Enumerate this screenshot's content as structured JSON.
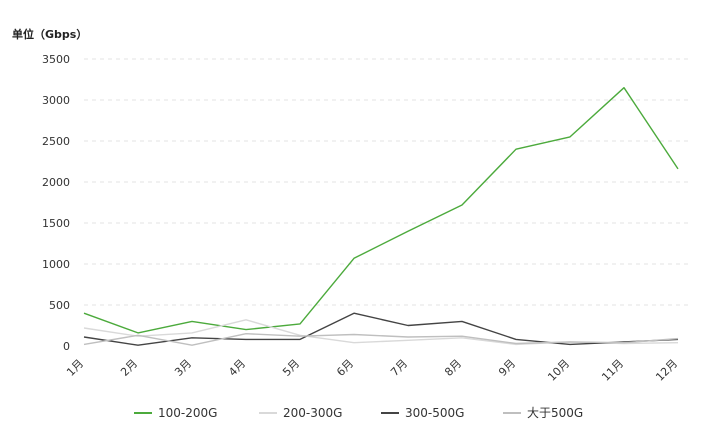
{
  "chart_data": {
    "type": "line",
    "ylabel": "单位（Gbps）",
    "categories": [
      "1月",
      "2月",
      "3月",
      "4月",
      "5月",
      "6月",
      "7月",
      "8月",
      "9月",
      "10月",
      "11月",
      "12月"
    ],
    "ylim": [
      0,
      3500
    ],
    "yticks": [
      0,
      500,
      1000,
      1500,
      2000,
      2500,
      3000,
      3500
    ],
    "grid": "horizontal-dashed",
    "legend_position": "bottom",
    "series": [
      {
        "name": "100-200G",
        "color": "#4caa3c",
        "values": [
          400,
          160,
          300,
          200,
          270,
          1070,
          1400,
          1720,
          2400,
          2550,
          3150,
          2160
        ]
      },
      {
        "name": "200-300G",
        "color": "#d9d9d9",
        "values": [
          220,
          120,
          160,
          320,
          130,
          40,
          70,
          100,
          20,
          50,
          30,
          40
        ]
      },
      {
        "name": "300-500G",
        "color": "#444444",
        "values": [
          110,
          10,
          100,
          80,
          80,
          400,
          250,
          300,
          80,
          20,
          50,
          80
        ]
      },
      {
        "name": "大于500G",
        "color": "#bfbfbf",
        "values": [
          20,
          130,
          10,
          150,
          120,
          140,
          110,
          120,
          30,
          50,
          40,
          90
        ]
      }
    ]
  }
}
